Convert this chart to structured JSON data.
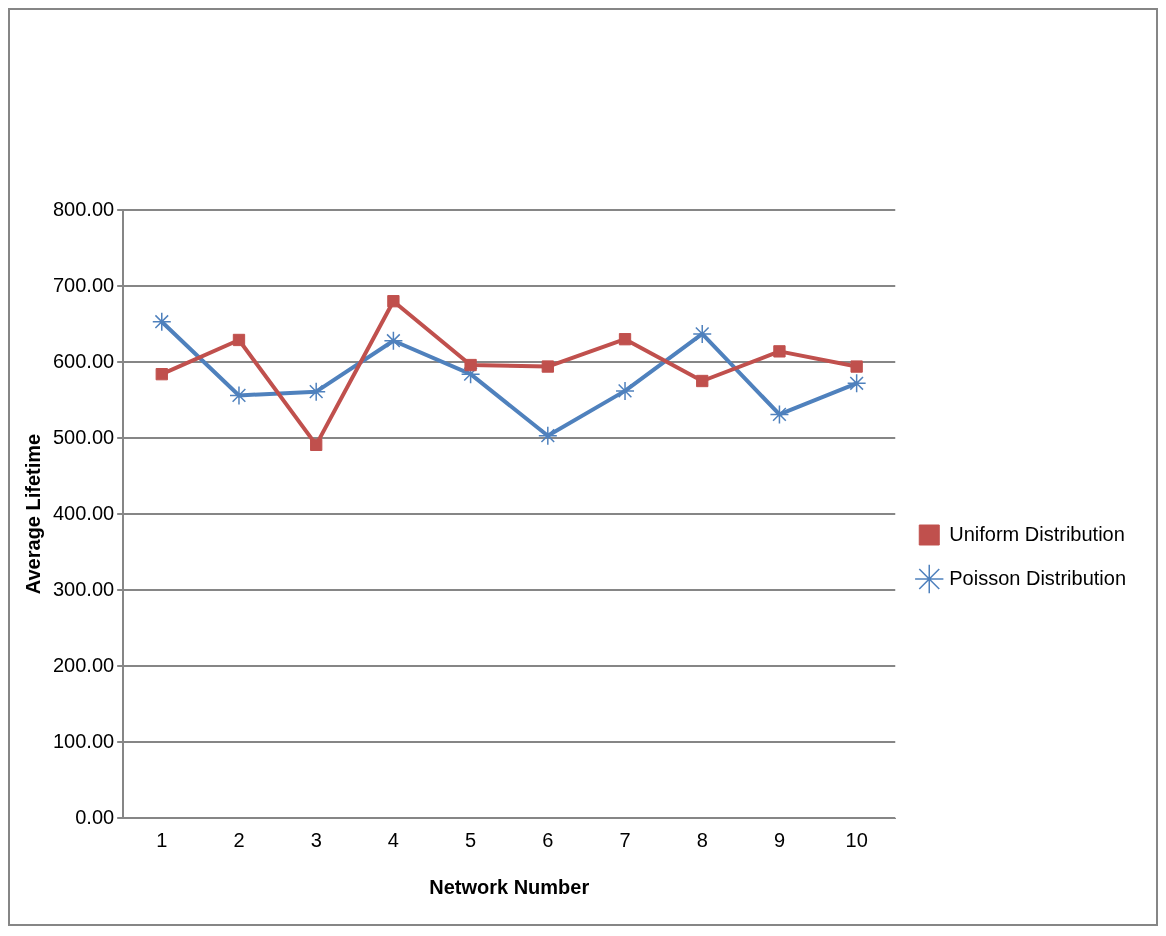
{
  "chart_data": {
    "type": "line",
    "xlabel": "Network Number",
    "ylabel": "Average Lifetime",
    "categories": [
      "1",
      "2",
      "3",
      "4",
      "5",
      "6",
      "7",
      "8",
      "9",
      "10"
    ],
    "series": [
      {
        "name": "Uniform Distribution",
        "color": "#c0504d",
        "marker": "square",
        "values": [
          584,
          629,
          491,
          680,
          596,
          594,
          630,
          575,
          614,
          594
        ]
      },
      {
        "name": "Poisson Distribution",
        "color": "#4f81bd",
        "marker": "cross",
        "values": [
          653,
          556,
          561,
          628,
          584,
          503,
          562,
          637,
          531,
          572
        ]
      }
    ],
    "ylim": [
      0,
      800
    ],
    "yticks": [
      {
        "value": 0,
        "label": "0.00"
      },
      {
        "value": 100,
        "label": "100.00"
      },
      {
        "value": 200,
        "label": "200.00"
      },
      {
        "value": 300,
        "label": "300.00"
      },
      {
        "value": 400,
        "label": "400.00"
      },
      {
        "value": 500,
        "label": "500.00"
      },
      {
        "value": 600,
        "label": "600.00"
      },
      {
        "value": 700,
        "label": "700.00"
      },
      {
        "value": 800,
        "label": "800.00"
      }
    ],
    "grid": "y",
    "legend": "right"
  }
}
